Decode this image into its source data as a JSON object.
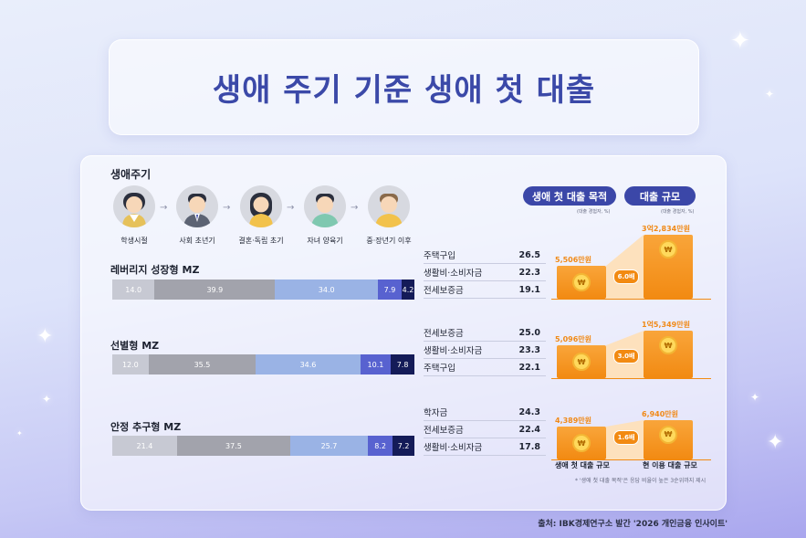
{
  "title": "생애 주기 기준 생애 첫 대출",
  "lifecycle": {
    "label": "생애주기",
    "stages": [
      "학생시절",
      "사회 초년기",
      "결혼·독립 초기",
      "자녀 양육기",
      "중·장년기 이후"
    ]
  },
  "headers": {
    "purpose": "생애 첫 대출 목적",
    "purpose_note": "(대출 경험자, %)",
    "scale": "대출 규모",
    "scale_note": "(대출 경험자, %)"
  },
  "chart_data": [
    {
      "type": "bar",
      "stacked": true,
      "orientation": "horizontal",
      "title": "",
      "categories": [
        "레버리지 성장형 MZ",
        "선별형 MZ",
        "안정 추구형 MZ"
      ],
      "segment_colors": [
        "#c7c9d3",
        "#a2a3ac",
        "#9ab3e5",
        "#5862d0",
        "#141b58"
      ],
      "rows": [
        {
          "name": "레버리지 성장형 MZ",
          "values": [
            14.0,
            39.9,
            34.0,
            7.9,
            4.2
          ],
          "labels": [
            "14.0",
            "39.9",
            "34.0",
            "7.9",
            "4.2"
          ]
        },
        {
          "name": "선별형 MZ",
          "values": [
            12.0,
            35.5,
            34.6,
            10.1,
            7.8
          ],
          "labels": [
            "12.0",
            "35.5",
            "34.6",
            "10.1",
            "7.8"
          ]
        },
        {
          "name": "안정 추구형 MZ",
          "values": [
            21.4,
            37.5,
            25.7,
            8.2,
            7.2
          ],
          "labels": [
            "21.4",
            "37.5",
            "25.7",
            "8.2",
            "7.2"
          ]
        }
      ]
    },
    {
      "type": "table",
      "title": "생애 첫 대출 목적",
      "groups": [
        {
          "rows": [
            {
              "label": "주택구입",
              "value": "26.5"
            },
            {
              "label": "생활비·소비자금",
              "value": "22.3"
            },
            {
              "label": "전세보증금",
              "value": "19.1"
            }
          ]
        },
        {
          "rows": [
            {
              "label": "전세보증금",
              "value": "25.0"
            },
            {
              "label": "생활비·소비자금",
              "value": "23.3"
            },
            {
              "label": "주택구입",
              "value": "22.1"
            }
          ]
        },
        {
          "rows": [
            {
              "label": "학자금",
              "value": "24.3"
            },
            {
              "label": "전세보증금",
              "value": "22.4"
            },
            {
              "label": "생활비·소비자금",
              "value": "17.8"
            }
          ]
        }
      ]
    },
    {
      "type": "bar",
      "title": "대출 규모",
      "categories": [
        "생애 첫 대출 규모",
        "현 이용 대출 규모"
      ],
      "groups": [
        {
          "first": 5506,
          "current": 32834,
          "first_label": "5,506만원",
          "current_label": "3억2,834만원",
          "multiple": "6.0배"
        },
        {
          "first": 5096,
          "current": 15349,
          "first_label": "5,096만원",
          "current_label": "1억5,349만원",
          "multiple": "3.0배"
        },
        {
          "first": 4389,
          "current": 6940,
          "first_label": "4,389만원",
          "current_label": "6,940만원",
          "multiple": "1.6배"
        }
      ]
    }
  ],
  "footnote": "* '생애 첫 대출 목적'은 응답 비율이 높은 3순위까지 제시",
  "source": "출처: IBK경제연구소 발간 '2026 개인금융 인사이트'",
  "colors": {
    "title": "#3b49a8",
    "accent": "#f28a12",
    "pill": "#3b47a8"
  }
}
